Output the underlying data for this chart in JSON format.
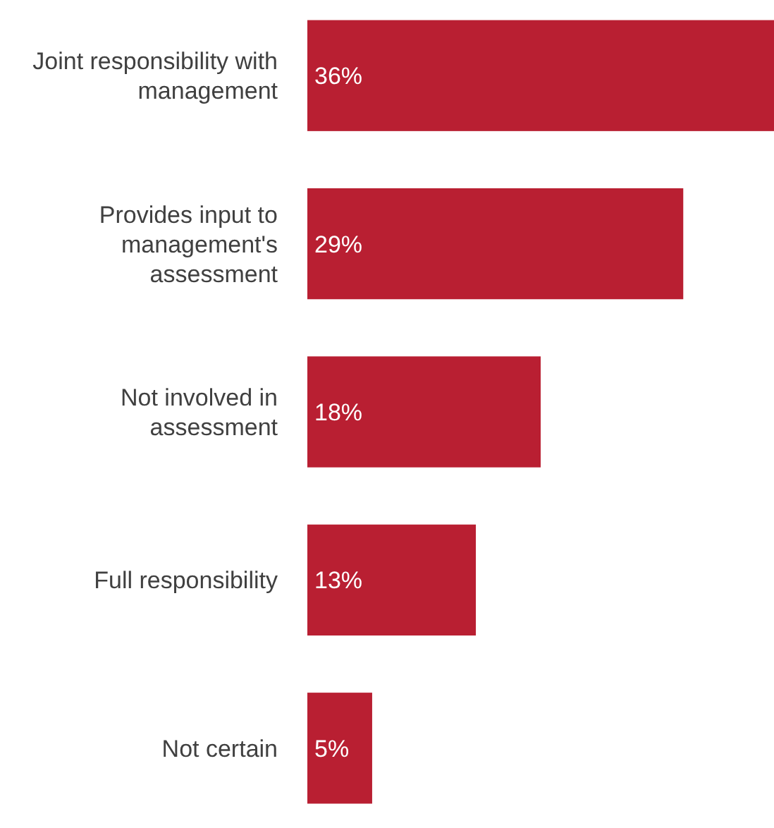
{
  "chart_data": {
    "type": "bar",
    "orientation": "horizontal",
    "categories": [
      "Joint responsibility with management",
      "Provides input to management's assessment",
      "Not involved in assessment",
      "Full responsibility",
      "Not certain"
    ],
    "values": [
      36,
      29,
      18,
      13,
      5
    ],
    "value_labels": [
      "36%",
      "29%",
      "18%",
      "13%",
      "5%"
    ],
    "color": "#b91f32"
  }
}
